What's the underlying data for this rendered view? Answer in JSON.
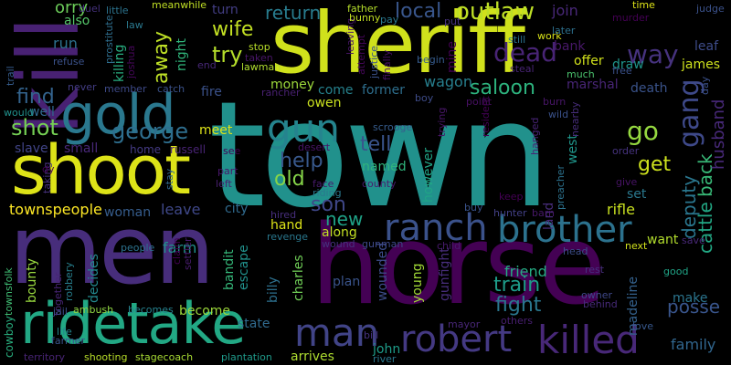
{
  "words": [
    {
      "text": "town",
      "color": "#21918c"
    },
    {
      "text": "men",
      "color": "#472d7b"
    },
    {
      "text": "horse",
      "color": "#440154"
    },
    {
      "text": "sheriff",
      "color": "#d0e11c"
    },
    {
      "text": "kill",
      "color": "#482173"
    },
    {
      "text": "shoot",
      "color": "#dde318"
    },
    {
      "text": "gold",
      "color": "#2a788e"
    },
    {
      "text": "ridetake",
      "color": "#22a884"
    },
    {
      "text": "ranch",
      "color": "#3b528b"
    },
    {
      "text": "brother",
      "color": "#2c728e"
    },
    {
      "text": "robert",
      "color": "#443983"
    },
    {
      "text": "killed",
      "color": "#482878"
    },
    {
      "text": "man",
      "color": "#414487"
    },
    {
      "text": "gun",
      "color": "#25848e"
    },
    {
      "text": "gang",
      "color": "#3e4989"
    },
    {
      "text": "outlaw",
      "color": "#bddf26"
    },
    {
      "text": "saloon",
      "color": "#2db27d"
    },
    {
      "text": "dead",
      "color": "#482475"
    },
    {
      "text": "way",
      "color": "#46327e"
    },
    {
      "text": "shot",
      "color": "#75d054"
    },
    {
      "text": "george",
      "color": "#2e6e8e"
    },
    {
      "text": "wife",
      "color": "#c2df23"
    },
    {
      "text": "local",
      "color": "#39568c"
    },
    {
      "text": "return",
      "color": "#287c8e"
    },
    {
      "text": "away",
      "color": "#bddf26"
    },
    {
      "text": "try",
      "color": "#b5de2b"
    },
    {
      "text": "find",
      "color": "#33638d"
    },
    {
      "text": "help",
      "color": "#38588c"
    },
    {
      "text": "tell",
      "color": "#3a548c"
    },
    {
      "text": "old",
      "color": "#86d549"
    },
    {
      "text": "get",
      "color": "#cde11d"
    },
    {
      "text": "go",
      "color": "#95d840"
    },
    {
      "text": "son",
      "color": "#3f4788"
    },
    {
      "text": "new",
      "color": "#1fa287"
    },
    {
      "text": "deputy",
      "color": "#2a768e"
    },
    {
      "text": "cattle",
      "color": "#22a884"
    },
    {
      "text": "back",
      "color": "#38b977"
    },
    {
      "text": "husband",
      "color": "#482979"
    },
    {
      "text": "train",
      "color": "#1e9c89"
    },
    {
      "text": "fight",
      "color": "#2a778e"
    },
    {
      "text": "posse",
      "color": "#39558c"
    },
    {
      "text": "family",
      "color": "#31668e"
    },
    {
      "text": "friend",
      "color": "#25ab82"
    },
    {
      "text": "wagon",
      "color": "#277f8e"
    },
    {
      "text": "money",
      "color": "#9dd93b"
    },
    {
      "text": "owen",
      "color": "#cae11f"
    },
    {
      "text": "bank",
      "color": "#48186a"
    },
    {
      "text": "offer",
      "color": "#d2e21b"
    },
    {
      "text": "marshal",
      "color": "#482576"
    },
    {
      "text": "death",
      "color": "#3a538b"
    },
    {
      "text": "draw",
      "color": "#1f958b"
    },
    {
      "text": "rifle",
      "color": "#c8e020"
    },
    {
      "text": "join",
      "color": "#482878"
    },
    {
      "text": "leaf",
      "color": "#3e4c8a"
    },
    {
      "text": "james",
      "color": "#cde11d"
    },
    {
      "text": "set",
      "color": "#2a788e"
    },
    {
      "text": "want",
      "color": "#b2dd2d"
    },
    {
      "text": "make",
      "color": "#2b758e"
    },
    {
      "text": "young",
      "color": "#a2da37"
    },
    {
      "text": "bounty",
      "color": "#98d83e"
    },
    {
      "text": "billy",
      "color": "#2d708e"
    },
    {
      "text": "bandit",
      "color": "#35b779"
    },
    {
      "text": "escape",
      "color": "#21918c"
    },
    {
      "text": "farm",
      "color": "#21918c"
    },
    {
      "text": "leave",
      "color": "#3f4889"
    },
    {
      "text": "woman",
      "color": "#365d8d"
    },
    {
      "text": "become",
      "color": "#9dd93b"
    },
    {
      "text": "state",
      "color": "#306a8e"
    },
    {
      "text": "arrives",
      "color": "#addc30"
    },
    {
      "text": "john",
      "color": "#1e9c89"
    },
    {
      "text": "plan",
      "color": "#3a548c"
    },
    {
      "text": "wounded",
      "color": "#3d4d8a"
    },
    {
      "text": "gunfight",
      "color": "#472d7b"
    },
    {
      "text": "madeline",
      "color": "#34618d"
    },
    {
      "text": "charles",
      "color": "#70cf57"
    },
    {
      "text": "along",
      "color": "#c2df23"
    },
    {
      "text": "hand",
      "color": "#dde318"
    },
    {
      "text": "townspeople",
      "color": "#fde725"
    },
    {
      "text": "named",
      "color": "#2fb47c"
    },
    {
      "text": "however",
      "color": "#20a486"
    },
    {
      "text": "small",
      "color": "#482878"
    },
    {
      "text": "slave",
      "color": "#414487"
    },
    {
      "text": "come",
      "color": "#26828e"
    },
    {
      "text": "former",
      "color": "#2e6f8e"
    },
    {
      "text": "meet",
      "color": "#dde318"
    },
    {
      "text": "fire",
      "color": "#3b528b"
    },
    {
      "text": "home",
      "color": "#443a83"
    },
    {
      "text": "russell",
      "color": "#482374"
    },
    {
      "text": "killing",
      "color": "#28ae80"
    },
    {
      "text": "night",
      "color": "#30b57a"
    },
    {
      "text": "run",
      "color": "#2d718e"
    },
    {
      "text": "orry",
      "color": "#6ccd5a"
    },
    {
      "text": "also",
      "color": "#54c568"
    },
    {
      "text": "well",
      "color": "#31678e"
    },
    {
      "text": "turn",
      "color": "#433e85"
    },
    {
      "text": "land",
      "color": "#472c7a"
    },
    {
      "text": "west",
      "color": "#1f968b"
    },
    {
      "text": "city",
      "color": "#306a8e"
    },
    {
      "text": "decides",
      "color": "#23898e"
    },
    {
      "text": "mine",
      "color": "#440154"
    },
    {
      "text": "left",
      "color": "#481f70"
    },
    {
      "text": "part",
      "color": "#481769"
    },
    {
      "text": "hired",
      "color": "#472e7c"
    },
    {
      "text": "revenge",
      "color": "#2a788e"
    },
    {
      "text": "wound",
      "color": "#46327e"
    },
    {
      "text": "gunman",
      "color": "#3e4989"
    },
    {
      "text": "child",
      "color": "#481a6c"
    },
    {
      "text": "hunter",
      "color": "#424086"
    },
    {
      "text": "barn",
      "color": "#48186a"
    },
    {
      "text": "point",
      "color": "#471063"
    },
    {
      "text": "boy",
      "color": "#3e4c8a"
    },
    {
      "text": "buy",
      "color": "#3a538b"
    },
    {
      "text": "keep",
      "color": "#440154"
    },
    {
      "text": "face",
      "color": "#481b6d"
    },
    {
      "text": "riding",
      "color": "#2a788e"
    },
    {
      "text": "desert",
      "color": "#481467"
    },
    {
      "text": "county",
      "color": "#481c6e"
    },
    {
      "text": "river",
      "color": "#2a788e"
    },
    {
      "text": "bill",
      "color": "#46337f"
    },
    {
      "text": "mayor",
      "color": "#482677"
    },
    {
      "text": "others",
      "color": "#481f70"
    },
    {
      "text": "love",
      "color": "#38588c"
    },
    {
      "text": "owner",
      "color": "#3f4889"
    },
    {
      "text": "behind",
      "color": "#472a7a"
    },
    {
      "text": "rest",
      "color": "#46307e"
    },
    {
      "text": "good",
      "color": "#20a486"
    },
    {
      "text": "head",
      "color": "#3d4e8a"
    },
    {
      "text": "next",
      "color": "#d2e21b"
    },
    {
      "text": "save",
      "color": "#482878"
    },
    {
      "text": "day",
      "color": "#3b518b"
    },
    {
      "text": "people",
      "color": "#2c728e"
    },
    {
      "text": "settler",
      "color": "#481c6e"
    },
    {
      "text": "claim",
      "color": "#440154"
    },
    {
      "text": "robbery",
      "color": "#27808e"
    },
    {
      "text": "together",
      "color": "#482576"
    },
    {
      "text": "cowboy",
      "color": "#29af7f"
    },
    {
      "text": "townsfolk",
      "color": "#3fbc73"
    },
    {
      "text": "jail",
      "color": "#3c4f8a"
    },
    {
      "text": "ambush",
      "color": "#90d743"
    },
    {
      "text": "becomes",
      "color": "#26828e"
    },
    {
      "text": "life",
      "color": "#24868e"
    },
    {
      "text": "farmer",
      "color": "#3a548c"
    },
    {
      "text": "territory",
      "color": "#482475"
    },
    {
      "text": "shooting",
      "color": "#b8de29"
    },
    {
      "text": "stagecoach",
      "color": "#a8db34"
    },
    {
      "text": "plantation",
      "color": "#1f9a8a"
    },
    {
      "text": "trail",
      "color": "#365c8d"
    },
    {
      "text": "refuse",
      "color": "#3b528b"
    },
    {
      "text": "duel",
      "color": "#46327e"
    },
    {
      "text": "prostitute",
      "color": "#2e6e8e"
    },
    {
      "text": "little",
      "color": "#2c738e"
    },
    {
      "text": "law",
      "color": "#2a788e"
    },
    {
      "text": "joshua",
      "color": "#46075a"
    },
    {
      "text": "meanwhile",
      "color": "#c0df25"
    },
    {
      "text": "taken",
      "color": "#481668"
    },
    {
      "text": "stop",
      "color": "#b8de29"
    },
    {
      "text": "lawman",
      "color": "#b0dd2f"
    },
    {
      "text": "rancher",
      "color": "#482071"
    },
    {
      "text": "never",
      "color": "#433d84"
    },
    {
      "text": "member",
      "color": "#3e4a89"
    },
    {
      "text": "catch",
      "color": "#3b528b"
    },
    {
      "text": "would",
      "color": "#21918c"
    },
    {
      "text": "end",
      "color": "#482878"
    },
    {
      "text": "see",
      "color": "#440154"
    },
    {
      "text": "leaving",
      "color": "#481668"
    },
    {
      "text": "attempt",
      "color": "#46075a"
    },
    {
      "text": "justice",
      "color": "#3b528b"
    },
    {
      "text": "finally",
      "color": "#471063"
    },
    {
      "text": "father",
      "color": "#b5de2b"
    },
    {
      "text": "bunny",
      "color": "#c2df23"
    },
    {
      "text": "pay",
      "color": "#2a788e"
    },
    {
      "text": "put",
      "color": "#46327e"
    },
    {
      "text": "begin",
      "color": "#365c8d"
    },
    {
      "text": "still",
      "color": "#2c728e"
    },
    {
      "text": "work",
      "color": "#d8e219"
    },
    {
      "text": "later",
      "color": "#2d708e"
    },
    {
      "text": "steal",
      "color": "#482475"
    },
    {
      "text": "time",
      "color": "#dde318"
    },
    {
      "text": "murder",
      "color": "#440154"
    },
    {
      "text": "judge",
      "color": "#3b528b"
    },
    {
      "text": "much",
      "color": "#4ac16d"
    },
    {
      "text": "free",
      "color": "#3b528b"
    },
    {
      "text": "order",
      "color": "#46337f"
    },
    {
      "text": "give",
      "color": "#471365"
    },
    {
      "text": "trying",
      "color": "#481668"
    },
    {
      "text": "resident",
      "color": "#440154"
    },
    {
      "text": "hanged",
      "color": "#482475"
    },
    {
      "text": "preacher",
      "color": "#2c728e"
    },
    {
      "text": "nearby",
      "color": "#472d7b"
    },
    {
      "text": "wild",
      "color": "#3b528b"
    },
    {
      "text": "burn",
      "color": "#481668"
    },
    {
      "text": "scrooge",
      "color": "#365c8d"
    },
    {
      "text": "stay",
      "color": "#31688e"
    },
    {
      "text": "taking",
      "color": "#46327e"
    },
    {
      "text": "dy",
      "color": "#440154"
    }
  ]
}
